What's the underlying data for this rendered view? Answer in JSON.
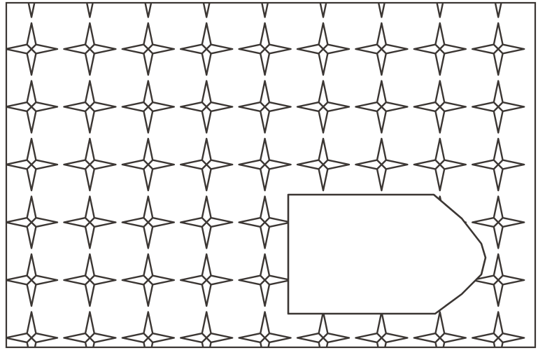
{
  "pattern": {
    "motif": "four-point-star",
    "columns": 9,
    "rows": 6,
    "top_edge": "partial-motifs",
    "line_color": "#3b3633",
    "background_color": "#ffffff"
  },
  "label_box": {
    "shape": "tag-with-chamfered-right-end",
    "fill": "#ffffff",
    "outline": "#3b3633",
    "text": ""
  }
}
